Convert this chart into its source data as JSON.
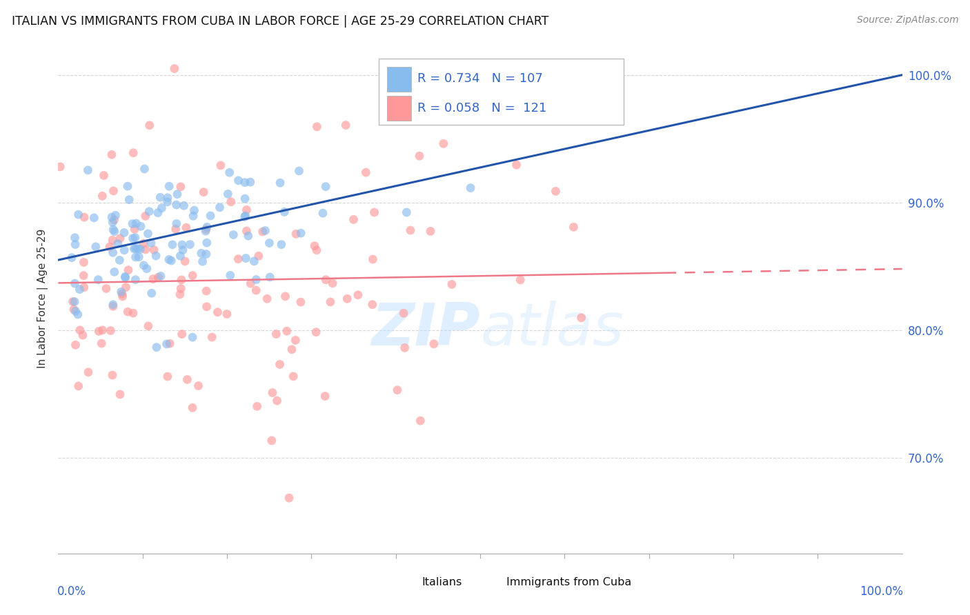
{
  "title": "ITALIAN VS IMMIGRANTS FROM CUBA IN LABOR FORCE | AGE 25-29 CORRELATION CHART",
  "source": "Source: ZipAtlas.com",
  "ylabel": "In Labor Force | Age 25-29",
  "ylabel_ticks": [
    "70.0%",
    "80.0%",
    "90.0%",
    "100.0%"
  ],
  "ytick_values": [
    0.7,
    0.8,
    0.9,
    1.0
  ],
  "xlim": [
    0.0,
    1.0
  ],
  "ylim": [
    0.625,
    1.025
  ],
  "legend_label1": "Italians",
  "legend_label2": "Immigrants from Cuba",
  "R1": 0.734,
  "N1": 107,
  "R2": 0.058,
  "N2": 121,
  "color_blue": "#88BBEE",
  "color_pink": "#FF9999",
  "color_blue_line": "#2255AA",
  "color_pink_line": "#EE7788",
  "color_text_blue": "#3366CC",
  "background": "#FFFFFF",
  "grid_color": "#CCCCCC"
}
